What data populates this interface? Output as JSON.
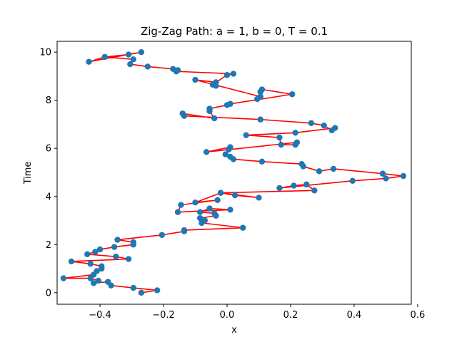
{
  "chart_data": {
    "type": "line",
    "title": "Zig-Zag Path: a = 1, b = 0, T = 0.1",
    "xlabel": "x",
    "ylabel": "Time",
    "xlim": [
      -0.535,
      0.58
    ],
    "ylim": [
      -0.48,
      10.45
    ],
    "xticks": [
      -0.4,
      -0.2,
      0.0,
      0.2,
      0.4,
      0.6
    ],
    "xtick_labels": [
      "−0.4",
      "−0.2",
      "0.0",
      "0.2",
      "0.4",
      "0.6"
    ],
    "yticks": [
      0,
      2,
      4,
      6,
      8,
      10
    ],
    "ytick_labels": [
      "0",
      "2",
      "4",
      "6",
      "8",
      "10"
    ],
    "grid": false,
    "legend": "none",
    "line_color": "#ff0000",
    "marker_color": "#1f77b4",
    "series": [
      {
        "x": [
          -0.27,
          -0.22,
          -0.295,
          -0.365,
          -0.375,
          -0.42,
          -0.405,
          -0.43,
          -0.515,
          -0.42,
          -0.41,
          -0.395,
          -0.395,
          -0.43,
          -0.49,
          -0.31,
          -0.35,
          -0.44,
          -0.415,
          -0.4,
          -0.355,
          -0.295,
          -0.295,
          -0.345,
          -0.205,
          -0.135,
          -0.135,
          0.05,
          -0.08,
          -0.07,
          -0.085,
          -0.035,
          -0.04,
          -0.085,
          -0.055,
          0.01,
          -0.155,
          -0.145,
          -0.03,
          -0.1,
          -0.02,
          0.1,
          0.025,
          -0.02,
          0.275,
          0.25,
          0.21,
          0.165,
          0.395,
          0.5,
          0.555,
          0.49,
          0.335,
          0.29,
          0.24,
          0.235,
          0.11,
          0.02,
          0.01,
          -0.005,
          0.005,
          0.01,
          -0.065,
          0.22,
          0.215,
          0.17,
          0.165,
          0.06,
          0.215,
          0.34,
          0.33,
          0.305,
          0.265,
          0.105,
          -0.135,
          -0.14,
          -0.04,
          -0.055,
          -0.055,
          0.0,
          0.01,
          0.205,
          0.11,
          0.105,
          0.095,
          0.105,
          -0.1,
          -0.035,
          -0.035,
          -0.045,
          0.0,
          0.02,
          -0.16,
          -0.155,
          -0.17,
          -0.25,
          -0.305,
          -0.295,
          -0.385,
          -0.435,
          -0.27,
          -0.31,
          -0.385
        ],
        "y": [
          0.0,
          0.1,
          0.2,
          0.3,
          0.45,
          0.4,
          0.5,
          0.6,
          0.6,
          0.75,
          0.9,
          1.0,
          1.1,
          1.2,
          1.3,
          1.4,
          1.5,
          1.6,
          1.7,
          1.8,
          1.9,
          2.0,
          2.1,
          2.2,
          2.4,
          2.55,
          2.6,
          2.7,
          2.9,
          3.0,
          3.1,
          3.2,
          3.3,
          3.35,
          3.5,
          3.45,
          3.35,
          3.65,
          3.85,
          3.75,
          4.15,
          3.95,
          4.05,
          4.15,
          4.25,
          4.5,
          4.45,
          4.35,
          4.65,
          4.75,
          4.85,
          4.95,
          5.15,
          5.05,
          5.25,
          5.35,
          5.45,
          5.55,
          5.65,
          5.75,
          5.95,
          6.05,
          5.85,
          6.25,
          6.15,
          6.15,
          6.45,
          6.55,
          6.65,
          6.85,
          6.75,
          6.95,
          7.05,
          7.2,
          7.35,
          7.45,
          7.25,
          7.55,
          7.65,
          7.8,
          7.85,
          8.25,
          8.45,
          8.35,
          8.05,
          8.15,
          8.85,
          8.75,
          8.6,
          8.65,
          9.05,
          9.1,
          9.2,
          9.25,
          9.3,
          9.4,
          9.5,
          9.7,
          9.8,
          9.6,
          10.0,
          9.9,
          9.8
        ]
      }
    ]
  }
}
